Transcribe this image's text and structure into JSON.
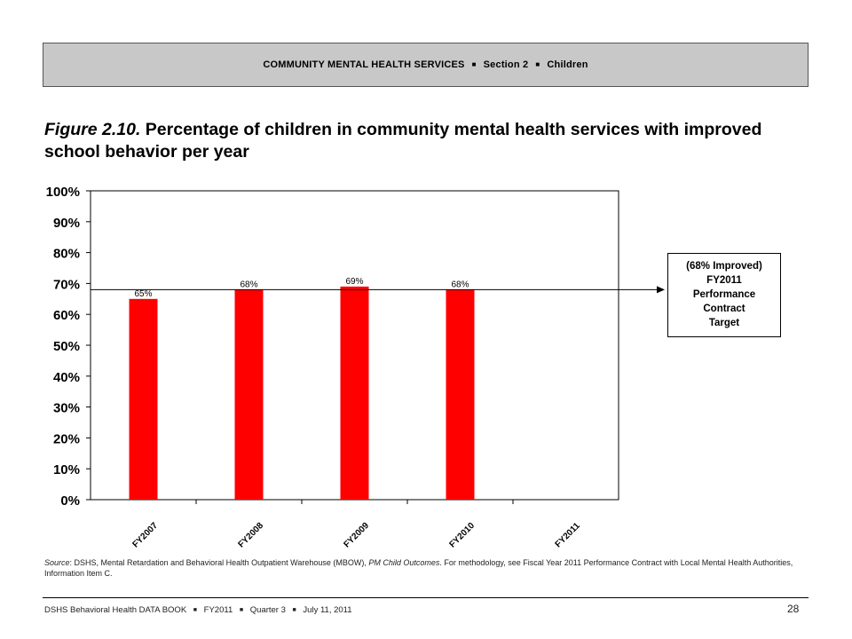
{
  "header": {
    "section": "COMMUNITY MENTAL HEALTH SERVICES",
    "part": "Section 2",
    "topic": "Children",
    "separator": "■"
  },
  "figure": {
    "number": "Figure 2.10.",
    "title": "Percentage of children in community mental health services with improved school behavior per year"
  },
  "chart_data": {
    "type": "bar",
    "categories": [
      "FY2007",
      "FY2008",
      "FY2009",
      "FY2010",
      "FY2011"
    ],
    "series": [
      {
        "values": [
          65,
          68,
          69,
          68,
          null
        ],
        "color": "#ff0000"
      }
    ],
    "data_labels": [
      "65%",
      "68%",
      "69%",
      "68%",
      ""
    ],
    "y_ticks": [
      0,
      10,
      20,
      30,
      40,
      50,
      60,
      70,
      80,
      90,
      100
    ],
    "y_tick_labels": [
      "0%",
      "10%",
      "20%",
      "30%",
      "40%",
      "50%",
      "60%",
      "70%",
      "80%",
      "90%",
      "100%"
    ],
    "ylim": [
      0,
      100
    ],
    "grid": false,
    "target_line": {
      "value": 68
    },
    "annotation": {
      "lines": [
        "(68% Improved)",
        "FY2011",
        "Performance",
        "Contract",
        "Target"
      ]
    }
  },
  "source": {
    "label": "Source",
    "text_1": ": DSHS, Mental Retardation and Behavioral Health Outpatient Warehouse (MBOW), ",
    "italic": "PM Child Outcomes",
    "text_2": ". For methodology, see Fiscal Year 2011 Performance Contract with Local Mental Health Authorities, Information Item C."
  },
  "footer": {
    "book": "DSHS Behavioral Health DATA BOOK",
    "fiscal_year": "FY2011",
    "quarter": "Quarter 3",
    "date": "July 11, 2011",
    "page": "28",
    "separator": "■"
  }
}
